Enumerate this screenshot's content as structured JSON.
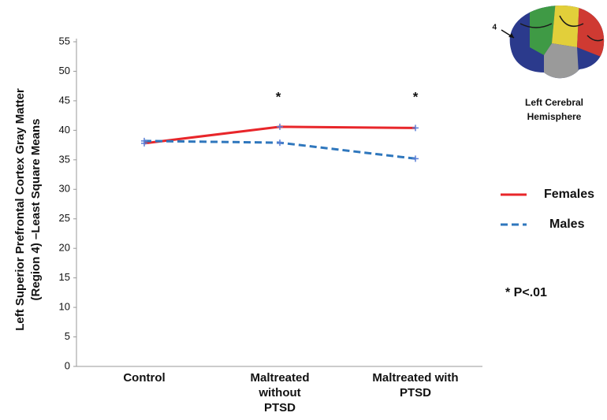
{
  "chart_data": {
    "type": "line",
    "y_label": [
      "Left Superior Prefrontal Cortex Gray Matter",
      "(Region 4) –Least Square Means"
    ],
    "categories": [
      "Control",
      "Maltreated without PTSD",
      "Maltreated with PTSD"
    ],
    "series": [
      {
        "name": "Females",
        "color": "#e8262a",
        "line_style": "solid",
        "values": [
          37.8,
          40.6,
          40.4
        ]
      },
      {
        "name": "Males",
        "color": "#2f77bd",
        "line_style": "dashed",
        "values": [
          38.2,
          37.9,
          35.2
        ]
      }
    ],
    "marker_color": "#5b7fd6",
    "ylim": [
      0,
      55
    ],
    "yticks": [
      0,
      5,
      10,
      15,
      20,
      25,
      30,
      35,
      40,
      45,
      50,
      55
    ],
    "annotations": [
      "*",
      "*",
      "* P<.01",
      "4",
      "Left Cerebral",
      "Hemisphere"
    ]
  }
}
